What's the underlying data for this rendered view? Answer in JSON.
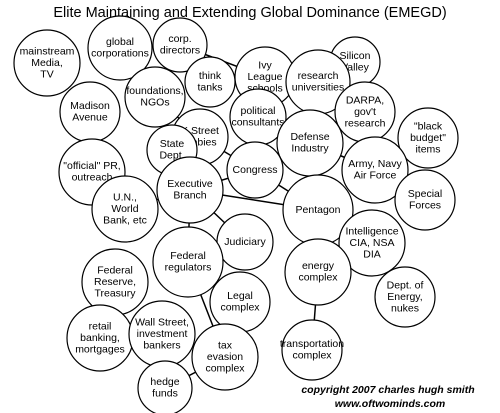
{
  "title": "Elite Maintaining and Extending Global Dominance (EMEGD)",
  "nodes": [
    {
      "lines": [
        "mainstream",
        "Media,",
        "TV"
      ]
    },
    {
      "lines": [
        "global",
        "corporations"
      ]
    },
    {
      "lines": [
        "corp.",
        "directors"
      ]
    },
    {
      "lines": [
        "Ivy",
        "League",
        "schools"
      ]
    },
    {
      "lines": [
        "Silicon",
        "Valley"
      ]
    },
    {
      "lines": [
        "research",
        "universities"
      ]
    },
    {
      "lines": [
        "foundations,",
        "NGOs"
      ]
    },
    {
      "lines": [
        "think",
        "tanks"
      ]
    },
    {
      "lines": [
        "Madison",
        "Avenue"
      ]
    },
    {
      "lines": [
        "political",
        "consultants"
      ]
    },
    {
      "lines": [
        "DARPA,",
        "gov't",
        "research"
      ]
    },
    {
      "lines": [
        "\"black",
        "budget\"",
        "items"
      ]
    },
    {
      "lines": [
        "K Street",
        "lobbies"
      ]
    },
    {
      "lines": [
        "Defense",
        "Industry"
      ]
    },
    {
      "lines": [
        "State",
        "Dept."
      ]
    },
    {
      "lines": [
        "\"official\" PR,",
        "outreach"
      ]
    },
    {
      "lines": [
        "Congress"
      ]
    },
    {
      "lines": [
        "Army, Navy",
        "Air Force"
      ]
    },
    {
      "lines": [
        "Executive",
        "Branch"
      ]
    },
    {
      "lines": [
        "Special",
        "Forces"
      ]
    },
    {
      "lines": [
        "U.N.,",
        "World",
        "Bank, etc"
      ]
    },
    {
      "lines": [
        "Pentagon"
      ]
    },
    {
      "lines": [
        "Intelligence",
        "CIA, NSA",
        "DIA"
      ]
    },
    {
      "lines": [
        "Judiciary"
      ]
    },
    {
      "lines": [
        "Federal",
        "regulators"
      ]
    },
    {
      "lines": [
        "Federal",
        "Reserve,",
        "Treasury"
      ]
    },
    {
      "lines": [
        "energy",
        "complex"
      ]
    },
    {
      "lines": [
        "Legal",
        "complex"
      ]
    },
    {
      "lines": [
        "Dept. of",
        "Energy,",
        "nukes"
      ]
    },
    {
      "lines": [
        "retail",
        "banking,",
        "mortgages"
      ]
    },
    {
      "lines": [
        "Wall Street,",
        "investment",
        "bankers"
      ]
    },
    {
      "lines": [
        "tax",
        "evasion",
        "complex"
      ]
    },
    {
      "lines": [
        "transportation",
        "complex"
      ]
    },
    {
      "lines": [
        "hedge",
        "funds"
      ]
    }
  ],
  "copyright": [
    "copyright 2007 charles hugh smith",
    "www.oftwominds.com"
  ]
}
